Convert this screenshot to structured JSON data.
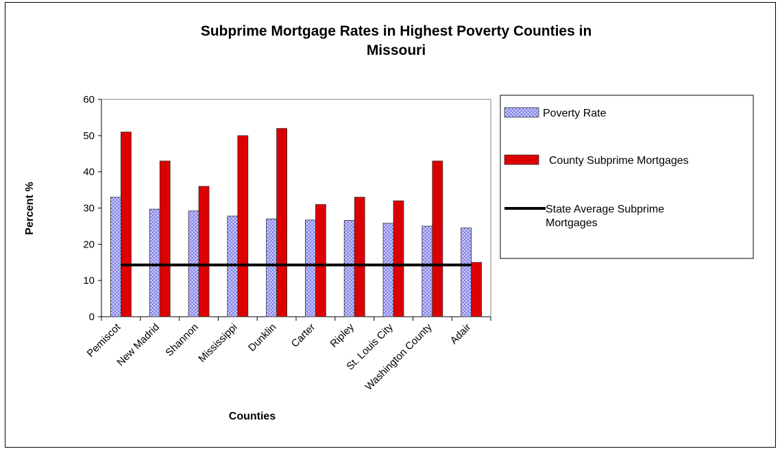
{
  "chart_data": {
    "type": "bar",
    "title_lines": [
      "Subprime Mortgage Rates in Highest Poverty Counties in",
      "Missouri"
    ],
    "xlabel": "Counties",
    "ylabel": "Percent %",
    "ylim": [
      0,
      60
    ],
    "yticks": [
      0,
      10,
      20,
      30,
      40,
      50,
      60
    ],
    "grid": false,
    "legend_position": "right",
    "categories": [
      "Pemiscot",
      "New Madrid",
      "Shannon",
      "Mississippi",
      "Dunklin",
      "Carter",
      "Ripley",
      "St. Louis City",
      "Washington County",
      "Adair"
    ],
    "series": [
      {
        "name": "Poverty Rate",
        "kind": "bar",
        "color": "#9999ff",
        "pattern": "crosshatch",
        "values": [
          33,
          29.7,
          29.2,
          27.8,
          27,
          26.7,
          26.6,
          25.8,
          25,
          24.5
        ]
      },
      {
        "name": "County Subprime Mortgages",
        "kind": "bar",
        "color": "#dd0000",
        "values": [
          51,
          43,
          36,
          50,
          52,
          31,
          33,
          32,
          43,
          15
        ]
      },
      {
        "name": "State Average Subprime Mortgages",
        "legend_lines": [
          "State Average Subprime",
          "Mortgages"
        ],
        "kind": "line",
        "color": "#000000",
        "values": [
          14.3,
          14.3,
          14.3,
          14.3,
          14.3,
          14.3,
          14.3,
          14.3,
          14.3,
          14.3
        ]
      }
    ]
  }
}
